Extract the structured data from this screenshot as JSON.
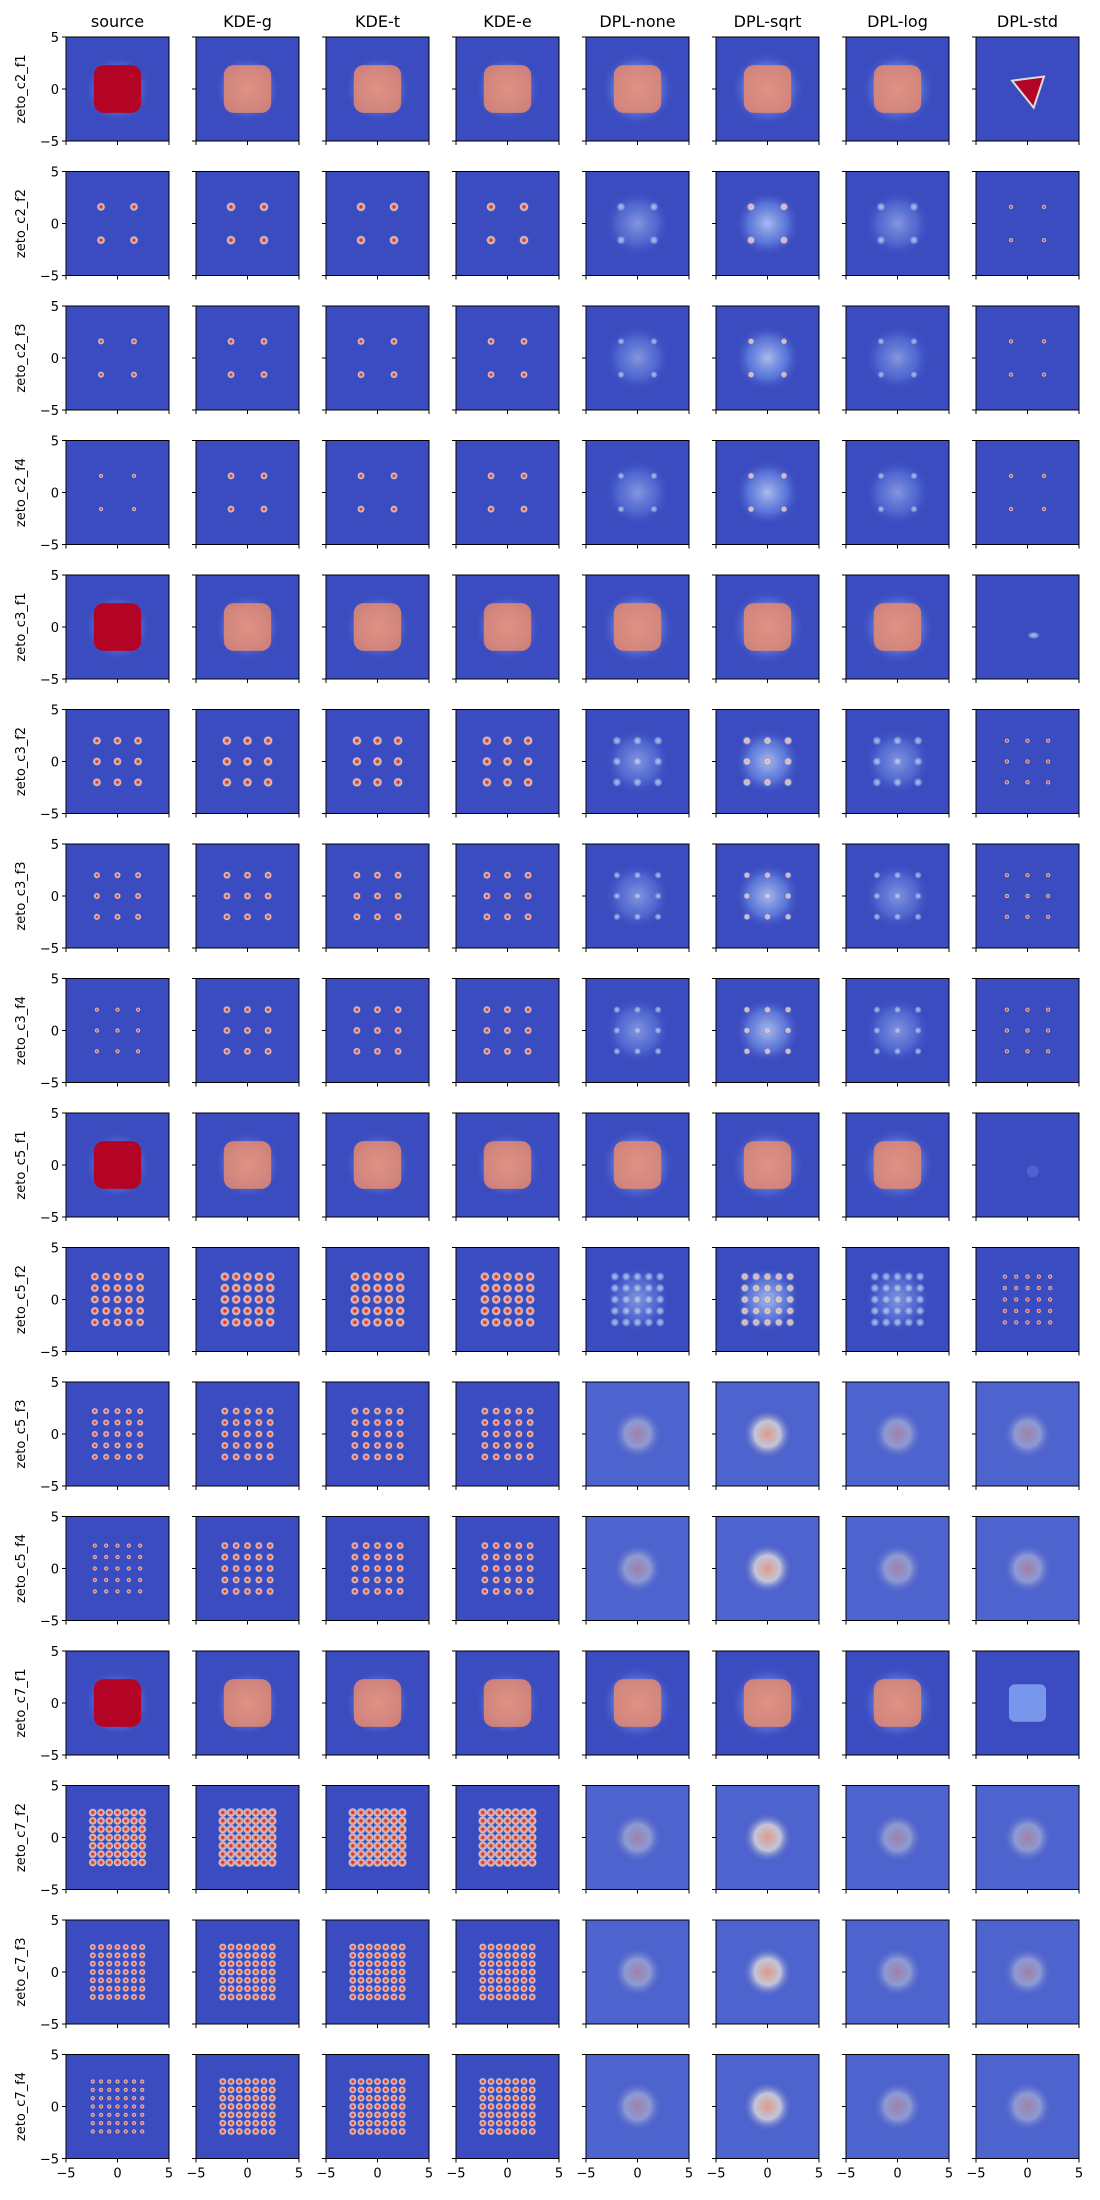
{
  "chart_data": {
    "type": "heatmap",
    "title": "",
    "colormap": "coolwarm",
    "colors": {
      "low": "#3b4cc0",
      "mid": "#dddddd",
      "high": "#b40426"
    },
    "columns": [
      "source",
      "KDE-g",
      "KDE-t",
      "KDE-e",
      "DPL-none",
      "DPL-sqrt",
      "DPL-log",
      "DPL-std"
    ],
    "rows": [
      "zeto_c2_f1",
      "zeto_c2_f2",
      "zeto_c2_f3",
      "zeto_c2_f4",
      "zeto_c3_f1",
      "zeto_c3_f2",
      "zeto_c3_f3",
      "zeto_c3_f4",
      "zeto_c5_f1",
      "zeto_c5_f2",
      "zeto_c5_f3",
      "zeto_c5_f4",
      "zeto_c7_f1",
      "zeto_c7_f2",
      "zeto_c7_f3",
      "zeto_c7_f4"
    ],
    "xlim": [
      -5,
      5
    ],
    "ylim": [
      -5,
      5
    ],
    "xticks": [
      -5,
      0,
      5
    ],
    "yticks": [
      -5,
      0,
      5
    ],
    "xtick_labels": [
      "−5",
      "0",
      "5"
    ],
    "ytick_labels": [
      "−5",
      "0",
      "5"
    ],
    "grid": false
  }
}
